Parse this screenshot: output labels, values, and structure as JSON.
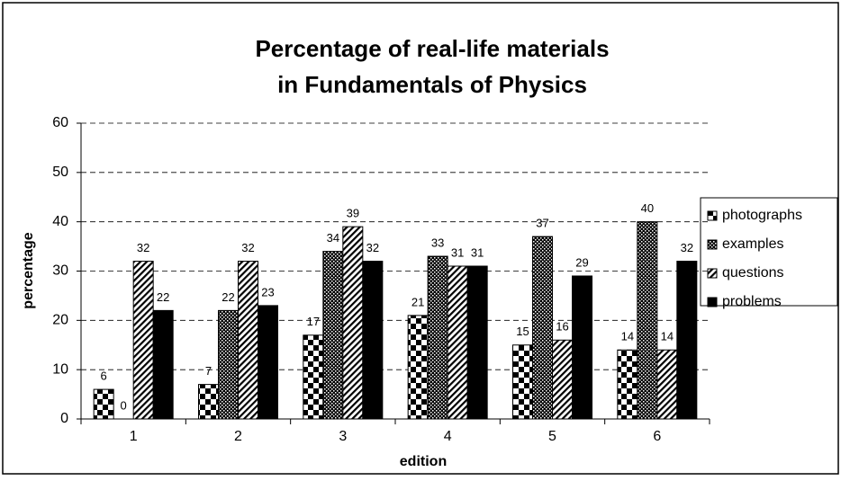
{
  "chart_data": {
    "type": "bar",
    "title": [
      "Percentage of real-life materials",
      "in Fundamentals of Physics"
    ],
    "x_label": "edition",
    "y_label": "percentage",
    "categories": [
      "1",
      "2",
      "3",
      "4",
      "5",
      "6"
    ],
    "series": [
      {
        "name": "photographs",
        "color": "#000000",
        "pattern": "checker",
        "values": [
          6,
          7,
          17,
          21,
          15,
          14
        ]
      },
      {
        "name": "examples",
        "color": "#000000",
        "pattern": "dots",
        "values": [
          0,
          22,
          34,
          33,
          37,
          40
        ]
      },
      {
        "name": "questions",
        "color": "#000000",
        "pattern": "hatch",
        "values": [
          32,
          32,
          39,
          31,
          16,
          14
        ]
      },
      {
        "name": "problems",
        "color": "#000000",
        "pattern": "solid",
        "values": [
          22,
          23,
          32,
          31,
          29,
          32
        ]
      }
    ],
    "ylim": [
      0,
      60
    ],
    "yticks": [
      0,
      10,
      20,
      30,
      40,
      50,
      60
    ],
    "grid": true,
    "legend": "right"
  }
}
